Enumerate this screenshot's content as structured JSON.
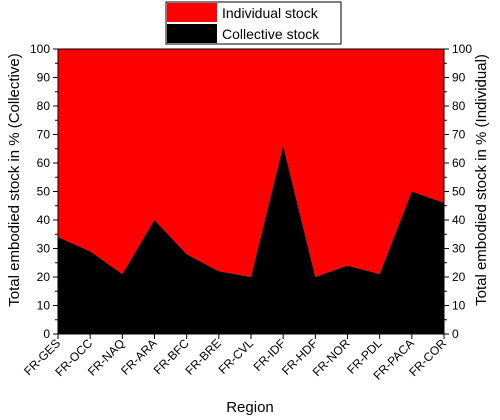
{
  "chart_data": {
    "type": "area",
    "stacked": true,
    "title": "",
    "xlabel": "Region",
    "ylabel_left": "Total embodied stock in % (Collective)",
    "ylabel_right": "Total embodied stock in % (Individual)",
    "ylim": [
      0,
      100
    ],
    "yticks": [
      0,
      10,
      20,
      30,
      40,
      50,
      60,
      70,
      80,
      90,
      100
    ],
    "categories": [
      "FR-GES",
      "FR-OCC",
      "FR-NAQ",
      "FR-ARA",
      "FR-BFC",
      "FR-BRE",
      "FR-CVL",
      "FR-IDF",
      "FR-HDF",
      "FR-NOR",
      "FR-PDL",
      "FR-PACA",
      "FR-COR"
    ],
    "series": [
      {
        "name": "Collective stock",
        "color": "#000000",
        "values": [
          34,
          29,
          21,
          40,
          28,
          22,
          20,
          66,
          20,
          24,
          21,
          50,
          46
        ]
      },
      {
        "name": "Individual stock",
        "color": "#ff0000",
        "values": [
          66,
          71,
          79,
          60,
          72,
          78,
          80,
          34,
          80,
          76,
          79,
          50,
          54
        ]
      }
    ],
    "legend": {
      "position": "top-center",
      "entries": [
        {
          "label": "Individual stock",
          "color": "#ff0000"
        },
        {
          "label": "Collective stock",
          "color": "#000000"
        }
      ]
    },
    "grid": false
  }
}
